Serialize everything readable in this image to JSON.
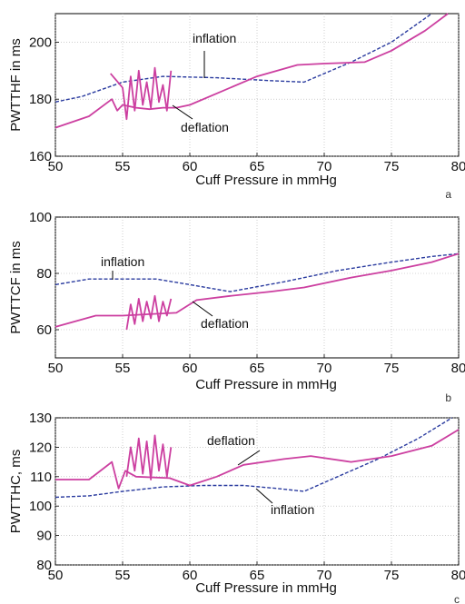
{
  "chart_data": [
    {
      "type": "line",
      "panel_letter": "a",
      "xlabel": "Cuff Pressure in mmHg",
      "ylabel": "PWTTHF in ms",
      "xlim": [
        50,
        80
      ],
      "ylim": [
        160,
        210
      ],
      "xticks": [
        50,
        55,
        60,
        65,
        70,
        75,
        80
      ],
      "yticks": [
        160,
        180,
        200
      ],
      "grid": true,
      "series": [
        {
          "name": "inflation",
          "style": "dashed",
          "color": "#2a3b9f",
          "x": [
            50,
            52,
            55,
            58,
            62,
            66,
            68.5,
            72,
            75,
            78
          ],
          "y": [
            179,
            181,
            186,
            188,
            187.5,
            186.5,
            186,
            193,
            200,
            210
          ]
        },
        {
          "name": "deflation",
          "style": "solid",
          "color": "#cc3fa0",
          "x": [
            50,
            52.5,
            54.2,
            54.6,
            55.0,
            56,
            57,
            58,
            59,
            60,
            62,
            65,
            68,
            70,
            73,
            75,
            77.5,
            79.2
          ],
          "y": [
            170,
            174,
            180,
            176,
            178,
            177,
            176.5,
            177,
            177,
            178,
            182,
            188,
            192,
            192.5,
            193,
            197,
            204,
            210
          ]
        },
        {
          "name": "",
          "style": "solid",
          "color": "#cc3fa0",
          "x": [
            54.1,
            55.0,
            55.3,
            55.6,
            55.9,
            56.2,
            56.5,
            56.8,
            57.1,
            57.4,
            57.7,
            58.0,
            58.3,
            58.6
          ],
          "y": [
            189,
            184,
            173,
            188,
            176,
            190,
            178,
            186,
            177,
            191,
            179,
            185,
            176,
            190
          ]
        }
      ],
      "annotations": [
        "inflation",
        "deflation"
      ]
    },
    {
      "type": "line",
      "panel_letter": "b",
      "xlabel": "Cuff Pressure in mmHg",
      "ylabel": "PWTTCF in ms",
      "xlim": [
        50,
        80
      ],
      "ylim": [
        50,
        100
      ],
      "xticks": [
        50,
        55,
        60,
        65,
        70,
        75,
        80
      ],
      "yticks": [
        60,
        80,
        100
      ],
      "grid": true,
      "series": [
        {
          "name": "inflation",
          "style": "dashed",
          "color": "#2a3b9f",
          "x": [
            50,
            52.5,
            55,
            57.5,
            60,
            63,
            67,
            71,
            75,
            78,
            80
          ],
          "y": [
            76,
            78,
            78,
            78,
            76,
            73.5,
            77,
            81,
            84,
            86,
            87
          ]
        },
        {
          "name": "deflation",
          "style": "solid",
          "color": "#cc3fa0",
          "x": [
            50,
            53,
            55,
            57,
            59,
            60.5,
            63,
            66,
            68.5,
            72,
            75,
            78,
            80
          ],
          "y": [
            61,
            65,
            65,
            65.5,
            66,
            70.5,
            72,
            73.5,
            75,
            78.5,
            81,
            84,
            87
          ]
        },
        {
          "name": "",
          "style": "solid",
          "color": "#cc3fa0",
          "x": [
            55.3,
            55.6,
            55.9,
            56.2,
            56.5,
            56.8,
            57.1,
            57.4,
            57.7,
            58.0,
            58.3,
            58.6
          ],
          "y": [
            60,
            69,
            62,
            71,
            63,
            70,
            64,
            72,
            63,
            70,
            65,
            71
          ]
        }
      ],
      "annotations": [
        "inflation",
        "deflation"
      ]
    },
    {
      "type": "line",
      "panel_letter": "c",
      "xlabel": "Cuff Pressure in mmHg",
      "ylabel": "PWTTHC, ms",
      "xlim": [
        50,
        80
      ],
      "ylim": [
        80,
        130
      ],
      "xticks": [
        50,
        55,
        60,
        65,
        70,
        75,
        80
      ],
      "yticks": [
        80,
        90,
        100,
        110,
        120,
        130
      ],
      "grid": true,
      "series": [
        {
          "name": "inflation",
          "style": "dashed",
          "color": "#2a3b9f",
          "x": [
            50,
            52.5,
            55,
            58,
            61,
            64,
            66.5,
            68.5,
            71,
            74,
            77,
            79.5
          ],
          "y": [
            103,
            103.5,
            105,
            106.5,
            107,
            107,
            106,
            105,
            110,
            116,
            123,
            130
          ]
        },
        {
          "name": "deflation",
          "style": "solid",
          "color": "#cc3fa0",
          "x": [
            50,
            52.5,
            54.2,
            54.7,
            55.2,
            56,
            58.5,
            60,
            62,
            64,
            67,
            69,
            72,
            75,
            78,
            80
          ],
          "y": [
            109,
            109,
            115,
            106,
            112,
            110,
            109.5,
            107,
            110,
            114,
            116,
            117,
            115,
            117,
            120.5,
            126
          ]
        },
        {
          "name": "",
          "style": "solid",
          "color": "#cc3fa0",
          "x": [
            55.3,
            55.6,
            55.9,
            56.2,
            56.5,
            56.8,
            57.1,
            57.4,
            57.7,
            58.0,
            58.3,
            58.6
          ],
          "y": [
            110,
            120,
            112,
            123,
            111,
            122,
            109,
            124,
            112,
            121,
            110,
            120
          ]
        }
      ],
      "annotations": [
        "deflation",
        "inflation"
      ]
    }
  ]
}
